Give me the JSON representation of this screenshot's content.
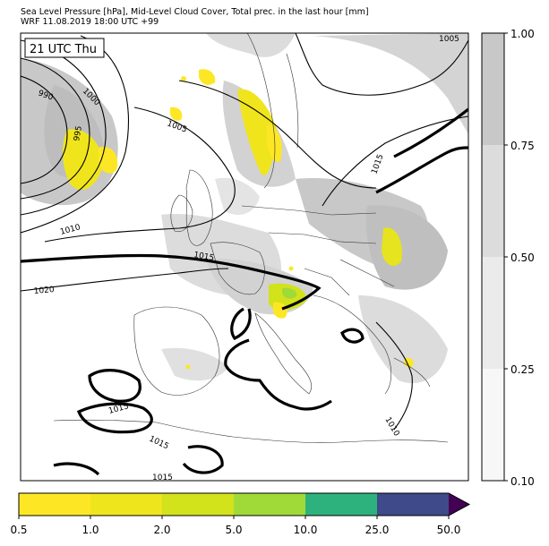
{
  "title_line1": "Sea Level Pressure [hPa], Mid-Level Cloud Cover, Total prec. in the last hour [mm]",
  "title_line2": "WRF 11.08.2019 18:00 UTC +99",
  "time_badge": "21 UTC Thu",
  "map": {
    "isobar_labels": [
      "990",
      "995",
      "1000",
      "1005",
      "1005",
      "1010",
      "1010",
      "1015",
      "1015",
      "1015",
      "1015",
      "1015",
      "1020"
    ]
  },
  "cloud_colorbar": {
    "ticks": [
      "1.00",
      "0.75",
      "0.50",
      "0.25",
      "0.10"
    ],
    "colors": [
      "#c8c8c8",
      "#dcdcdc",
      "#ebebeb",
      "#f7f7f7"
    ]
  },
  "precip_colorbar": {
    "ticks": [
      "0.5",
      "1.0",
      "2.0",
      "5.0",
      "10.0",
      "25.0",
      "50.0"
    ],
    "colors": [
      "#fde725",
      "#efe51c",
      "#d2e21b",
      "#a0da39",
      "#2db27d",
      "#3e4a89",
      "#440154"
    ]
  }
}
